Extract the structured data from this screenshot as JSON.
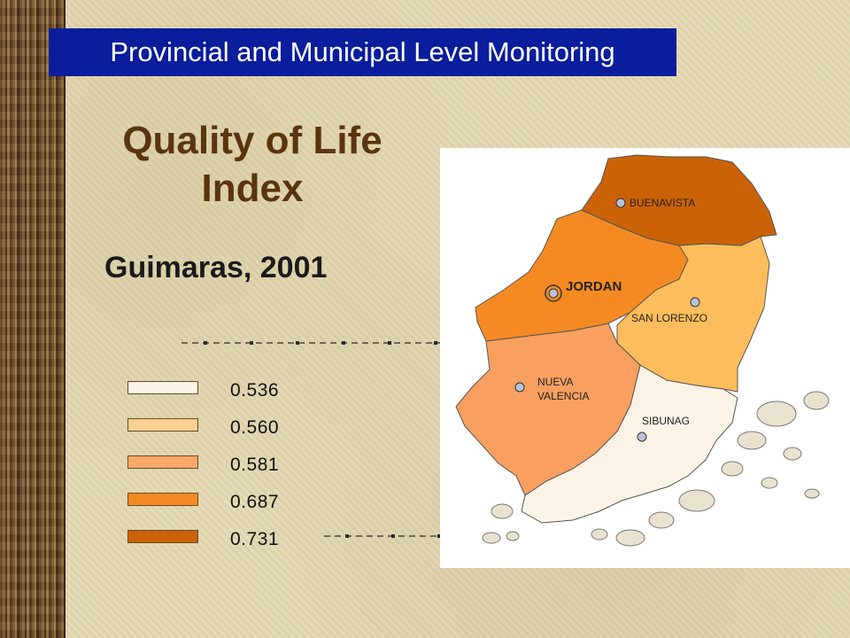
{
  "header": {
    "banner": "Provincial and Municipal Level Monitoring"
  },
  "title": {
    "line1": "Quality of Life",
    "line2": "Index"
  },
  "subtitle": "Guimaras, 2001",
  "legend": [
    {
      "value": "0.536",
      "color": "#fbf4e6"
    },
    {
      "value": "0.560",
      "color": "#fdcf93"
    },
    {
      "value": "0.581",
      "color": "#f9a868"
    },
    {
      "value": "0.687",
      "color": "#f58a22"
    },
    {
      "value": "0.731",
      "color": "#cc6208"
    }
  ],
  "map": {
    "municipalities": {
      "buenavista": {
        "label": "BUENAVISTA",
        "color": "#cc6208"
      },
      "jordan": {
        "label": "JORDAN",
        "color": "#f58a22"
      },
      "san_lorenzo": {
        "label": "SAN LORENZO",
        "color": "#fdbd5c"
      },
      "nueva_valencia": {
        "label_line1": "NUEVA",
        "label_line2": "VALENCIA",
        "color": "#f9a060"
      },
      "sibunag": {
        "label": "SIBUNAG",
        "color": "#fbf4e6"
      }
    }
  }
}
